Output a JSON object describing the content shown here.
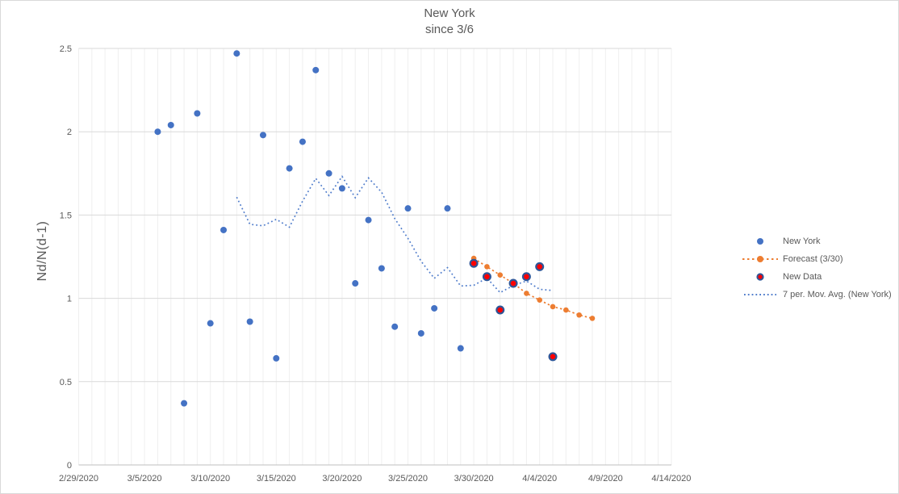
{
  "chart": {
    "title_line1": "New York",
    "title_line2": "since 3/6",
    "y_axis_title": "Nd/N(d-1)"
  },
  "colors": {
    "new_york": "#4472C4",
    "forecast": "#ED7D31",
    "new_data_fill": "#FF0000",
    "new_data_border": "#2F5597",
    "moving_avg": "#4F7CCB",
    "text_gray": "#595959",
    "gridline_minor": "#EFEFEF",
    "gridline_major": "#D9D9D9",
    "axis_line": "#BFBFBF"
  },
  "chart_data": {
    "type": "scatter",
    "title": "New York since 3/6",
    "xlabel": "",
    "ylabel": "Nd/N(d-1)",
    "ylim": [
      0,
      2.5
    ],
    "grid": "on",
    "legend_position": "right",
    "y_ticks": [
      {
        "label": "0",
        "value": 0
      },
      {
        "label": "0.5",
        "value": 0.5
      },
      {
        "label": "1",
        "value": 1
      },
      {
        "label": "1.5",
        "value": 1.5
      },
      {
        "label": "2",
        "value": 2
      },
      {
        "label": "2.5",
        "value": 2.5
      }
    ],
    "x_ticks": [
      {
        "label": "2/29/2020"
      },
      {
        "label": "3/5/2020"
      },
      {
        "label": "3/10/2020"
      },
      {
        "label": "3/15/2020"
      },
      {
        "label": "3/20/2020"
      },
      {
        "label": "3/25/2020"
      },
      {
        "label": "3/30/2020"
      },
      {
        "label": "4/4/2020"
      },
      {
        "label": "4/9/2020"
      },
      {
        "label": "4/14/2020"
      }
    ],
    "series": [
      {
        "name": "New York",
        "type": "scatter",
        "color": "#4472C4",
        "points": [
          {
            "date": "3/6/2020",
            "value": 2.0
          },
          {
            "date": "3/7/2020",
            "value": 2.04
          },
          {
            "date": "3/8/2020",
            "value": 0.37
          },
          {
            "date": "3/9/2020",
            "value": 2.11
          },
          {
            "date": "3/10/2020",
            "value": 0.85
          },
          {
            "date": "3/11/2020",
            "value": 1.41
          },
          {
            "date": "3/12/2020",
            "value": 2.47
          },
          {
            "date": "3/13/2020",
            "value": 0.86
          },
          {
            "date": "3/14/2020",
            "value": 1.98
          },
          {
            "date": "3/15/2020",
            "value": 0.64
          },
          {
            "date": "3/16/2020",
            "value": 1.78
          },
          {
            "date": "3/17/2020",
            "value": 1.94
          },
          {
            "date": "3/18/2020",
            "value": 2.37
          },
          {
            "date": "3/19/2020",
            "value": 1.75
          },
          {
            "date": "3/20/2020",
            "value": 1.66
          },
          {
            "date": "3/21/2020",
            "value": 1.09
          },
          {
            "date": "3/22/2020",
            "value": 1.47
          },
          {
            "date": "3/23/2020",
            "value": 1.18
          },
          {
            "date": "3/24/2020",
            "value": 0.83
          },
          {
            "date": "3/25/2020",
            "value": 1.54
          },
          {
            "date": "3/26/2020",
            "value": 0.79
          },
          {
            "date": "3/27/2020",
            "value": 0.94
          },
          {
            "date": "3/28/2020",
            "value": 1.54
          },
          {
            "date": "3/29/2020",
            "value": 0.7
          }
        ]
      },
      {
        "name": "Forecast (3/30)",
        "type": "line",
        "style": "dashed-with-markers",
        "color": "#ED7D31",
        "points": [
          {
            "date": "3/30/2020",
            "value": 1.24
          },
          {
            "date": "3/31/2020",
            "value": 1.19
          },
          {
            "date": "4/1/2020",
            "value": 1.14
          },
          {
            "date": "4/2/2020",
            "value": 1.09
          },
          {
            "date": "4/3/2020",
            "value": 1.03
          },
          {
            "date": "4/4/2020",
            "value": 0.99
          },
          {
            "date": "4/5/2020",
            "value": 0.95
          },
          {
            "date": "4/6/2020",
            "value": 0.93
          },
          {
            "date": "4/7/2020",
            "value": 0.9
          },
          {
            "date": "4/8/2020",
            "value": 0.88
          }
        ]
      },
      {
        "name": "New Data",
        "type": "scatter",
        "color": "#FF0000",
        "border_color": "#2F5597",
        "points": [
          {
            "date": "3/30/2020",
            "value": 1.21
          },
          {
            "date": "3/31/2020",
            "value": 1.13
          },
          {
            "date": "4/1/2020",
            "value": 0.93
          },
          {
            "date": "4/2/2020",
            "value": 1.09
          },
          {
            "date": "4/3/2020",
            "value": 1.13
          },
          {
            "date": "4/4/2020",
            "value": 1.19
          },
          {
            "date": "4/5/2020",
            "value": 0.65
          }
        ]
      },
      {
        "name": "7 per. Mov. Avg. (New York)",
        "type": "moving-average",
        "style": "dotted",
        "color": "#4F7CCB",
        "window": 7,
        "computed_from": [
          "New York",
          "New Data"
        ]
      }
    ]
  }
}
